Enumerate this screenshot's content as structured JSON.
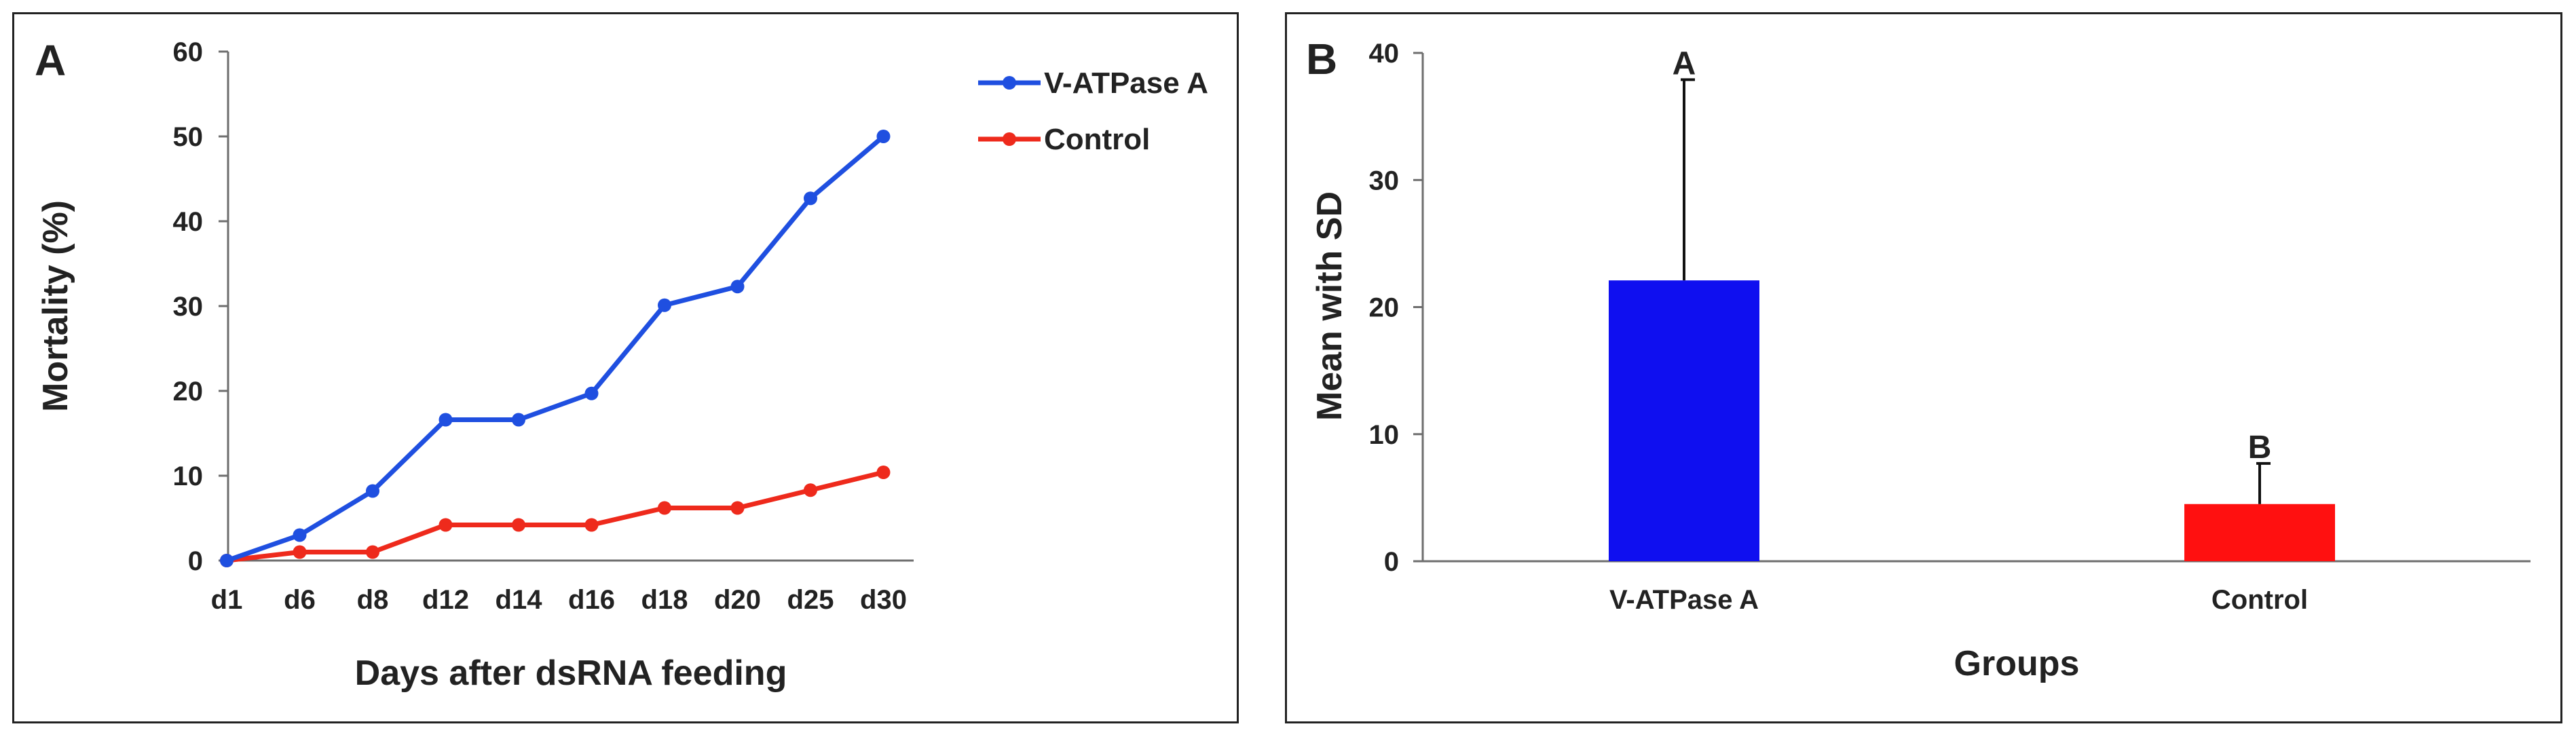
{
  "chart_data": [
    {
      "panel_label": "A",
      "type": "line",
      "categories": [
        "d1",
        "d6",
        "d8",
        "d12",
        "d14",
        "d16",
        "d18",
        "d20",
        "d25",
        "d30"
      ],
      "series": [
        {
          "name": "V-ATPase A",
          "color": "#1f4fe0",
          "values": [
            0,
            3,
            8.2,
            16.6,
            16.6,
            19.7,
            30.1,
            32.3,
            42.7,
            50
          ]
        },
        {
          "name": "Control",
          "color": "#ee2a1c",
          "values": [
            0,
            1,
            1,
            4.2,
            4.2,
            4.2,
            6.2,
            6.2,
            8.3,
            10.4
          ]
        }
      ],
      "xlabel": "Days after dsRNA feeding",
      "ylabel": "Mortality (%)",
      "ylim": [
        0,
        60
      ],
      "yticks": [
        "0",
        "10",
        "20",
        "30",
        "40",
        "50",
        "60"
      ],
      "grid": false,
      "legend": "top-right"
    },
    {
      "panel_label": "B",
      "type": "bar",
      "categories": [
        "V-ATPase A",
        "Control"
      ],
      "values": [
        22.1,
        4.5
      ],
      "error": [
        15.8,
        3.2
      ],
      "colors": [
        "#0f0ff0",
        "#ff1010"
      ],
      "significance": [
        "A",
        "B"
      ],
      "xlabel": "Groups",
      "ylabel": "Mean with SD",
      "ylim": [
        0,
        40
      ],
      "yticks": [
        "0",
        "10",
        "20",
        "30",
        "40"
      ],
      "grid": false
    }
  ]
}
